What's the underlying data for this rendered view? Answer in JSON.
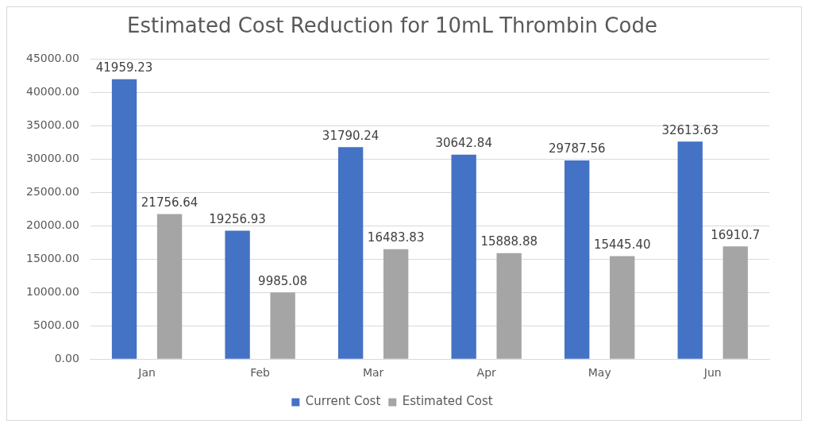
{
  "chart_data": {
    "type": "bar",
    "title": "Estimated Cost Reduction for 10mL Thrombin Code",
    "categories": [
      "Jan",
      "Feb",
      "Mar",
      "Apr",
      "May",
      "Jun"
    ],
    "series": [
      {
        "name": "Current Cost",
        "color": "#4472c4",
        "values": [
          41959.23,
          19256.93,
          31790.24,
          30642.84,
          29787.56,
          32613.63
        ],
        "value_labels": [
          "41959.23",
          "19256.93",
          "31790.24",
          "30642.84",
          "29787.56",
          "32613.63"
        ]
      },
      {
        "name": "Estimated Cost",
        "color": "#a5a5a5",
        "values": [
          21756.64,
          9985.08,
          16483.83,
          15888.88,
          15445.4,
          16910.7
        ],
        "value_labels": [
          "21756.64",
          "9985.08",
          "16483.83",
          "15888.88",
          "15445.40",
          "16910.7"
        ]
      }
    ],
    "ylim": [
      0,
      45000
    ],
    "yticks": [
      {
        "value": 0,
        "label": "0.00"
      },
      {
        "value": 5000,
        "label": "5000.00"
      },
      {
        "value": 10000,
        "label": "10000.00"
      },
      {
        "value": 15000,
        "label": "15000.00"
      },
      {
        "value": 20000,
        "label": "20000.00"
      },
      {
        "value": 25000,
        "label": "25000.00"
      },
      {
        "value": 30000,
        "label": "30000.00"
      },
      {
        "value": 35000,
        "label": "35000.00"
      },
      {
        "value": 40000,
        "label": "40000.00"
      },
      {
        "value": 45000,
        "label": "45000.00"
      }
    ],
    "grid": "y",
    "legend": "bottom"
  }
}
